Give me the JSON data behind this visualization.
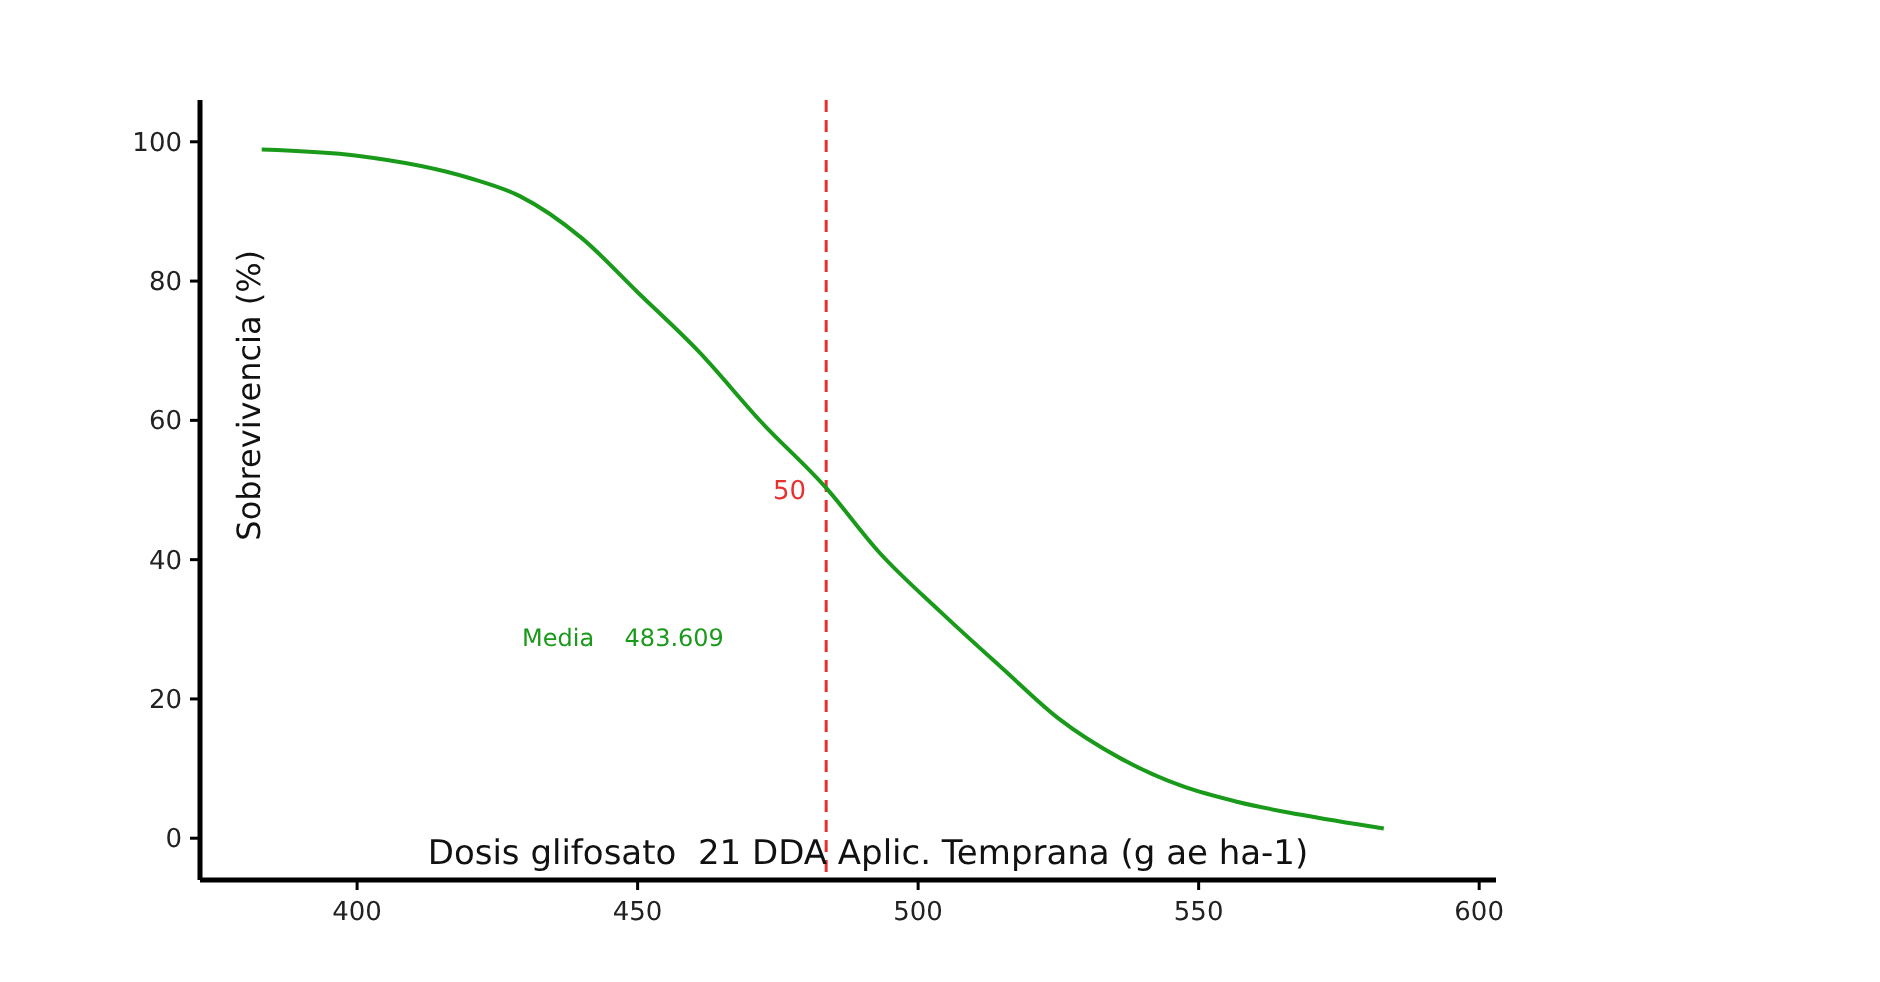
{
  "chart_data": {
    "type": "line",
    "xlabel": "Dosis glifosato  21 DDA Aplic. Temprana (g ae ha-1)",
    "ylabel": "Sobrevivencia (%)",
    "x": [
      383,
      400,
      420,
      429,
      440,
      450,
      461,
      472,
      483.6,
      493,
      504,
      515,
      525,
      536,
      547,
      557,
      568,
      583
    ],
    "series": [
      {
        "color": "#1a9a1a",
        "values": [
          98.9,
          98,
          94.8,
          92.2,
          86.2,
          78.4,
          69.8,
          59.8,
          50.3,
          41.1,
          32.5,
          24.4,
          17.2,
          11.5,
          7.5,
          5.2,
          3.4,
          1.4
        ]
      }
    ],
    "xlim": [
      372,
      603
    ],
    "xticks": [
      400,
      450,
      500,
      550,
      600
    ],
    "ylim": [
      -6,
      106
    ],
    "yticks": [
      0,
      20,
      40,
      60,
      80,
      100
    ],
    "ref_lines": [
      {
        "axis": "x",
        "value": 483.609,
        "color": "#e8312f",
        "line_style": "dashed"
      }
    ],
    "annotations": [
      "Media    483.609",
      {
        "text": "50",
        "x": 483.609,
        "y": 50
      }
    ],
    "grid": false,
    "marker": "none",
    "line_style": "solid"
  }
}
